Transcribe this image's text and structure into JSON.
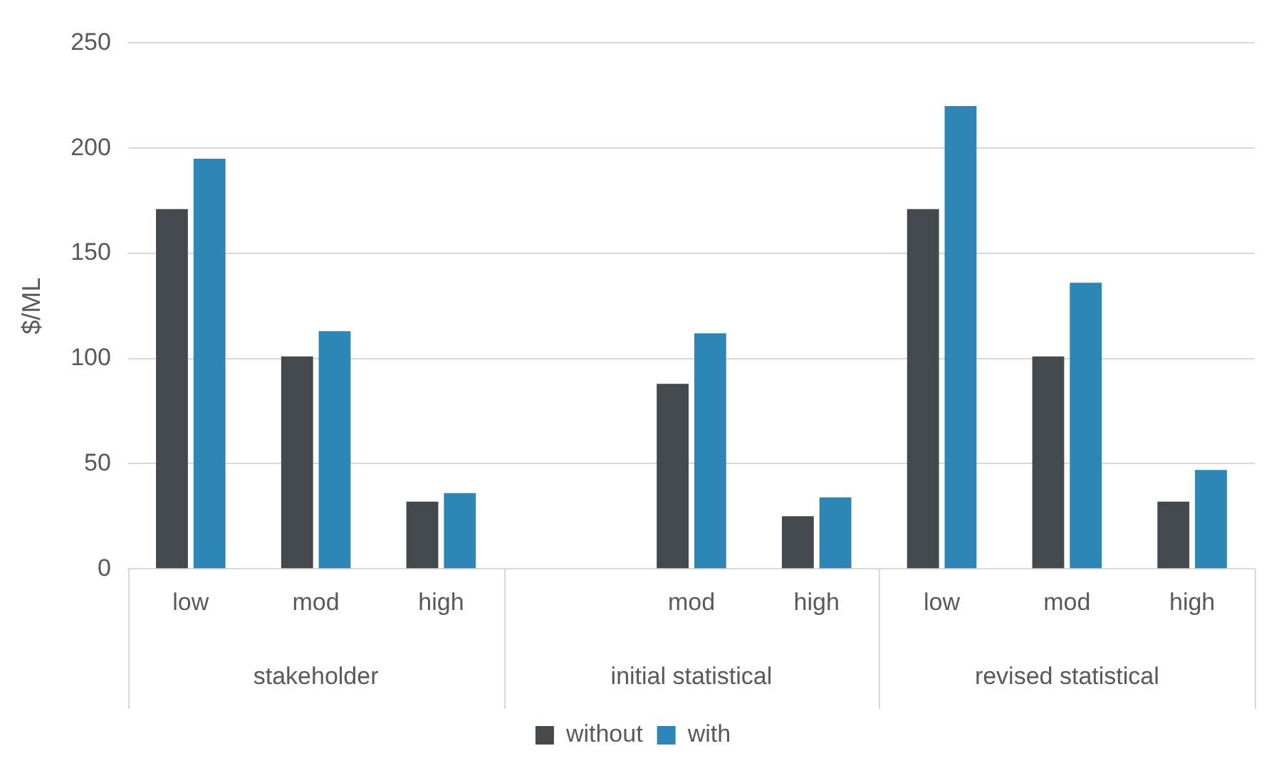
{
  "chart_data": {
    "type": "bar",
    "ylabel": "$/ML",
    "categories": [
      "low",
      "mod",
      "high",
      null,
      "mod",
      "high",
      "low",
      "mod",
      "high"
    ],
    "annotations": [
      "stakeholder",
      "initial statistical",
      "revised statistical"
    ],
    "series": [
      {
        "name": "without",
        "color": "#44494e",
        "values": [
          171,
          101,
          32,
          null,
          88,
          25,
          171,
          101,
          32
        ]
      },
      {
        "name": "with",
        "color": "#2e86b6",
        "values": [
          195,
          113,
          36,
          null,
          112,
          34,
          220,
          136,
          47
        ]
      }
    ],
    "ylim": [
      0,
      250
    ],
    "yticks": [
      0,
      50,
      100,
      150,
      200,
      250
    ],
    "grid": "y",
    "legend": "bottom"
  }
}
